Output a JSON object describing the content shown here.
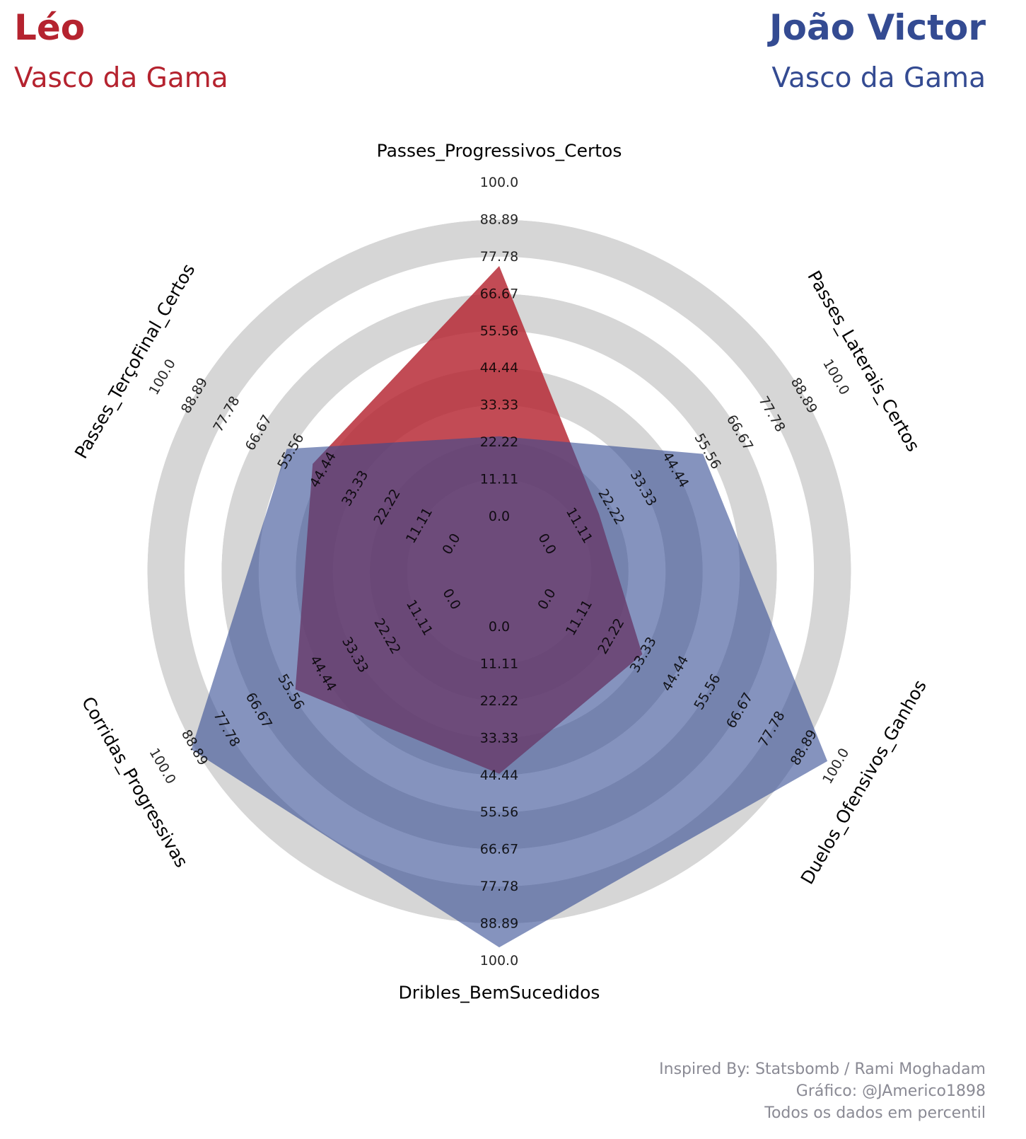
{
  "players": [
    {
      "name": "Léo",
      "team": "Vasco da Gama",
      "color": "#b5232f"
    },
    {
      "name": "João Victor",
      "team": "Vasco da Gama",
      "color": "#344b92"
    }
  ],
  "credits": [
    "Inspired By: Statsbomb / Rami Moghadam",
    "Gráfico: @JAmerico1898",
    "Todos os dados em percentil"
  ],
  "chart_data": {
    "type": "radar",
    "title": "",
    "categories": [
      "Passes_Progressivos_Certos",
      "Passes_Laterais_Certos",
      "Duelos_Ofensivos_Ganhos",
      "Dribles_BemSucedidos",
      "Corridas_Progressivas",
      "Passes_TerçoFinal_Certos"
    ],
    "ticks": [
      "0.0",
      "11.11",
      "22.22",
      "33.33",
      "44.44",
      "55.56",
      "66.67",
      "77.78",
      "88.89",
      "100.0"
    ],
    "range": [
      0,
      100
    ],
    "series": [
      {
        "name": "Léo",
        "values": [
          75,
          18,
          33,
          44,
          54,
          48
        ],
        "color": "#b5232f"
      },
      {
        "name": "João Victor",
        "values": [
          24,
          54,
          97,
          96,
          90,
          57
        ],
        "color": "#344b92"
      }
    ]
  }
}
